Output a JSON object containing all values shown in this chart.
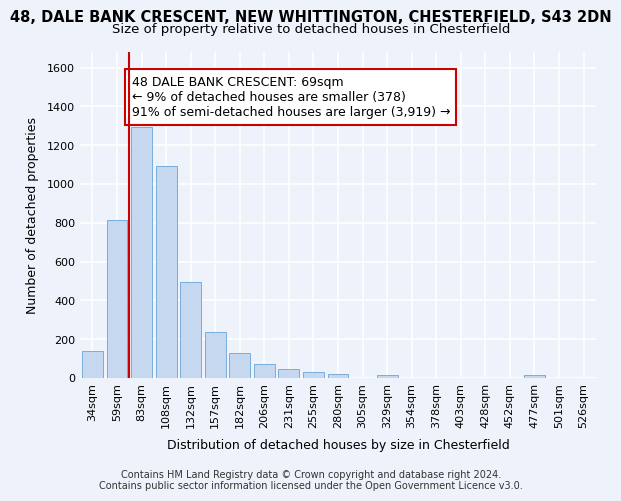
{
  "title_line1": "48, DALE BANK CRESCENT, NEW WHITTINGTON, CHESTERFIELD, S43 2DN",
  "title_line2": "Size of property relative to detached houses in Chesterfield",
  "xlabel": "Distribution of detached houses by size in Chesterfield",
  "ylabel": "Number of detached properties",
  "footer_line1": "Contains HM Land Registry data © Crown copyright and database right 2024.",
  "footer_line2": "Contains public sector information licensed under the Open Government Licence v3.0.",
  "bar_labels": [
    "34sqm",
    "59sqm",
    "83sqm",
    "108sqm",
    "132sqm",
    "157sqm",
    "182sqm",
    "206sqm",
    "231sqm",
    "255sqm",
    "280sqm",
    "305sqm",
    "329sqm",
    "354sqm",
    "378sqm",
    "403sqm",
    "428sqm",
    "452sqm",
    "477sqm",
    "501sqm",
    "526sqm"
  ],
  "bar_values": [
    140,
    815,
    1295,
    1090,
    495,
    235,
    130,
    70,
    45,
    28,
    22,
    0,
    15,
    0,
    0,
    0,
    0,
    0,
    15,
    0,
    0
  ],
  "bar_color": "#c5d8f0",
  "bar_edge_color": "#7aaddc",
  "bar_alpha": 1.0,
  "vline_x": 1.5,
  "vline_color": "#cc0000",
  "annotation_text": "48 DALE BANK CRESCENT: 69sqm\n← 9% of detached houses are smaller (378)\n91% of semi-detached houses are larger (3,919) →",
  "annotation_box_color": "#ffffff",
  "annotation_border_color": "#cc0000",
  "ylim": [
    0,
    1680
  ],
  "yticks": [
    0,
    200,
    400,
    600,
    800,
    1000,
    1200,
    1400,
    1600
  ],
  "background_color": "#eef2fa",
  "grid_color": "#ffffff",
  "title_fontsize": 10.5,
  "subtitle_fontsize": 9.5,
  "axis_label_fontsize": 9,
  "tick_fontsize": 8,
  "annotation_fontsize": 9,
  "footer_fontsize": 7
}
